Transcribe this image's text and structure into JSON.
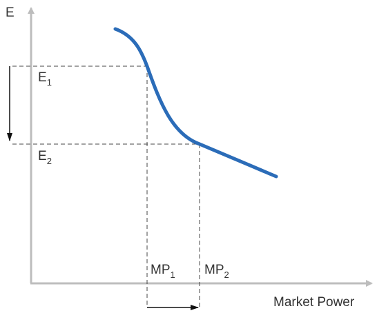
{
  "axes": {
    "y_label": "E",
    "x_label": "Market Power"
  },
  "levels": [
    {
      "main": "E",
      "sub": "1"
    },
    {
      "main": "E",
      "sub": "2"
    }
  ],
  "powers": [
    {
      "main": "MP",
      "sub": "1"
    },
    {
      "main": "MP",
      "sub": "2"
    }
  ]
}
